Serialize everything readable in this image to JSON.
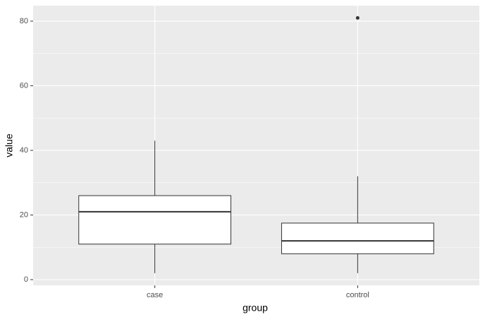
{
  "chart_data": {
    "type": "boxplot",
    "x_label": "group",
    "y_label": "value",
    "categories": [
      "case",
      "control"
    ],
    "boxes": [
      {
        "whisker_low": 2,
        "q1": 11,
        "median": 21,
        "q3": 26,
        "whisker_high": 43
      },
      {
        "whisker_low": 2,
        "q1": 8,
        "median": 12,
        "q3": 17.5,
        "whisker_high": 32,
        "outliers": [
          81
        ]
      }
    ],
    "ylim": [
      -1.75,
      84.8
    ],
    "yticks": [
      0,
      20,
      40,
      60,
      80
    ],
    "y_minor_ticks": [
      10,
      30,
      50,
      70
    ],
    "grid": true,
    "panel_color": "#ebebeb",
    "box_fill": "#ffffff",
    "line_color": "#333333"
  }
}
